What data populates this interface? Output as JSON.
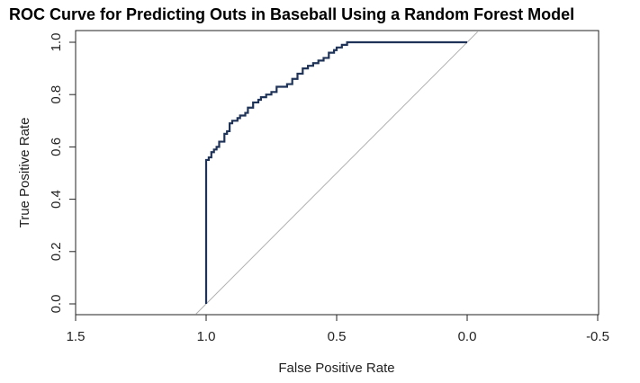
{
  "chart_data": {
    "type": "line",
    "title": "ROC Curve for Predicting Outs in Baseball Using a Random Forest Model",
    "xlabel": "False Positive Rate",
    "ylabel": "True Positive Rate",
    "xlim": [
      1.5,
      -0.5
    ],
    "ylim": [
      0.0,
      1.0
    ],
    "x_reversed": true,
    "grid": false,
    "x_ticks": [
      1.5,
      1.0,
      0.5,
      0.0,
      -0.5
    ],
    "x_tick_labels": [
      "1.5",
      "1.0",
      "0.5",
      "0.0",
      "-0.5"
    ],
    "y_ticks": [
      0.0,
      0.2,
      0.4,
      0.6,
      0.8,
      1.0
    ],
    "y_tick_labels": [
      "0.0",
      "0.2",
      "0.4",
      "0.6",
      "0.8",
      "1.0"
    ],
    "series": [
      {
        "color": "#1f3358",
        "style": "step",
        "x": [
          1.0,
          1.0,
          0.99,
          0.98,
          0.97,
          0.96,
          0.95,
          0.93,
          0.92,
          0.91,
          0.9,
          0.88,
          0.87,
          0.85,
          0.84,
          0.82,
          0.8,
          0.79,
          0.77,
          0.75,
          0.73,
          0.71,
          0.69,
          0.67,
          0.65,
          0.63,
          0.61,
          0.59,
          0.57,
          0.55,
          0.53,
          0.51,
          0.5,
          0.48,
          0.46,
          0.44,
          0.43,
          0.0
        ],
        "y": [
          0.0,
          0.52,
          0.55,
          0.56,
          0.58,
          0.59,
          0.6,
          0.62,
          0.65,
          0.66,
          0.69,
          0.7,
          0.71,
          0.72,
          0.73,
          0.75,
          0.77,
          0.78,
          0.79,
          0.8,
          0.81,
          0.83,
          0.83,
          0.84,
          0.86,
          0.88,
          0.9,
          0.91,
          0.92,
          0.93,
          0.94,
          0.96,
          0.97,
          0.98,
          0.99,
          1.0,
          1.0,
          1.0
        ]
      },
      {
        "color": "#b0b0b0",
        "style": "reference",
        "x": [
          1.0,
          0.0
        ],
        "y": [
          0.0,
          1.0
        ]
      }
    ]
  }
}
